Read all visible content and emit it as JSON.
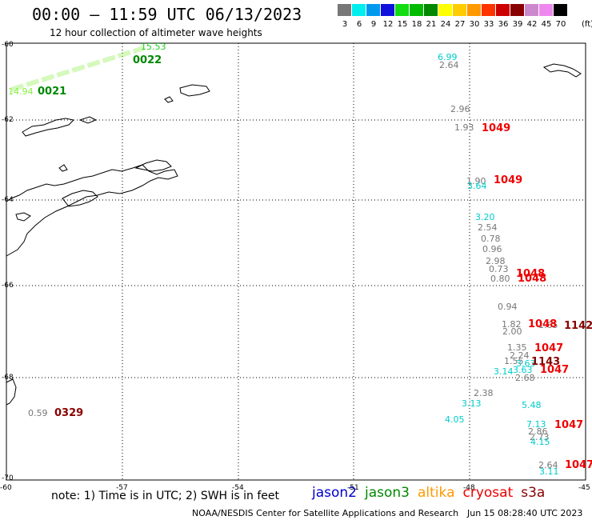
{
  "header": {
    "title": "00:00 – 11:59 UTC 06/13/2023",
    "subtitle": "12 hour collection of altimeter wave heights"
  },
  "colorbar": {
    "colors": [
      "#777777",
      "#00eeee",
      "#0099ee",
      "#1111dd",
      "#11dd11",
      "#00bb00",
      "#008800",
      "#ffff00",
      "#ffcc00",
      "#ff9900",
      "#ff3300",
      "#cc0000",
      "#880000",
      "#cc88cc",
      "#ee88ee",
      "#000000"
    ],
    "labels": [
      "3",
      "6",
      "9",
      "12",
      "15",
      "18",
      "21",
      "24",
      "27",
      "30",
      "33",
      "36",
      "39",
      "42",
      "45",
      "70"
    ],
    "unit": "(ft)"
  },
  "axes": {
    "lat_labels": [
      "-60",
      "-62",
      "-64",
      "-66",
      "-68",
      "-70"
    ],
    "lon_labels": [
      "-60",
      "-57",
      "-54",
      "-51",
      "-48",
      "-45"
    ]
  },
  "observations": [
    {
      "text": "15.53",
      "color": "#22cc22"
    },
    {
      "text": "14.94",
      "color": "#88ee44"
    },
    {
      "text": "6.99",
      "color": "#00cccc"
    },
    {
      "text": "2.64",
      "color": "#777777"
    },
    {
      "text": "2.96",
      "color": "#777777"
    },
    {
      "text": "1.93",
      "color": "#777777"
    },
    {
      "text": "1.90",
      "color": "#777777"
    },
    {
      "text": "3.64",
      "color": "#00cccc"
    },
    {
      "text": "3.20",
      "color": "#00cccc"
    },
    {
      "text": "2.54",
      "color": "#777777"
    },
    {
      "text": "0.78",
      "color": "#777777"
    },
    {
      "text": "0.96",
      "color": "#777777"
    },
    {
      "text": "2.98",
      "color": "#777777"
    },
    {
      "text": "0.73",
      "color": "#777777"
    },
    {
      "text": "0.80",
      "color": "#777777"
    },
    {
      "text": "0.94",
      "color": "#777777"
    },
    {
      "text": "1.82",
      "color": "#777777"
    },
    {
      "text": "2.00",
      "color": "#777777"
    },
    {
      "text": "1.65",
      "color": "#777777"
    },
    {
      "text": "1.35",
      "color": "#777777"
    },
    {
      "text": "2.24",
      "color": "#777777"
    },
    {
      "text": "1.55",
      "color": "#777777"
    },
    {
      "text": "3.63",
      "color": "#00cccc"
    },
    {
      "text": "3.14",
      "color": "#00cccc"
    },
    {
      "text": "3.63",
      "color": "#00cccc"
    },
    {
      "text": "2.68",
      "color": "#777777"
    },
    {
      "text": "2.38",
      "color": "#777777"
    },
    {
      "text": "3.13",
      "color": "#00cccc"
    },
    {
      "text": "4.05",
      "color": "#00cccc"
    },
    {
      "text": "5.48",
      "color": "#00cccc"
    },
    {
      "text": "7.13",
      "color": "#00cccc"
    },
    {
      "text": "2.86",
      "color": "#777777"
    },
    {
      "text": "2.73",
      "color": "#777777"
    },
    {
      "text": "4.15",
      "color": "#00cccc"
    },
    {
      "text": "2.64",
      "color": "#777777"
    },
    {
      "text": "3.11",
      "color": "#00cccc"
    },
    {
      "text": "0.59",
      "color": "#777777"
    }
  ],
  "pass_times": [
    {
      "text": "0022",
      "color": "#008800"
    },
    {
      "text": "0021",
      "color": "#008800"
    },
    {
      "text": "1049",
      "color": "#ee0000"
    },
    {
      "text": "1049",
      "color": "#ee0000"
    },
    {
      "text": "1048",
      "color": "#ee0000"
    },
    {
      "text": "1048",
      "color": "#ee0000"
    },
    {
      "text": "1048",
      "color": "#ee0000"
    },
    {
      "text": "1142",
      "color": "#880000"
    },
    {
      "text": "1047",
      "color": "#ee0000"
    },
    {
      "text": "1143",
      "color": "#880000"
    },
    {
      "text": "1047",
      "color": "#ee0000"
    },
    {
      "text": "1047",
      "color": "#ee0000"
    },
    {
      "text": "1047",
      "color": "#ee0000"
    },
    {
      "text": "0329",
      "color": "#880000"
    }
  ],
  "footer": {
    "note": "note: 1) Time is in UTC; 2) SWH is in feet",
    "satellites": [
      {
        "name": "jason2",
        "color": "#0000cc"
      },
      {
        "name": "jason3",
        "color": "#008800"
      },
      {
        "name": "altika",
        "color": "#ff9900"
      },
      {
        "name": "cryosat",
        "color": "#ee0000"
      },
      {
        "name": "s3a",
        "color": "#880000"
      }
    ],
    "credit": "NOAA/NESDIS Center for Satellite Applications and Research",
    "generated": "Jun 15 08:28:40 UTC 2023"
  }
}
